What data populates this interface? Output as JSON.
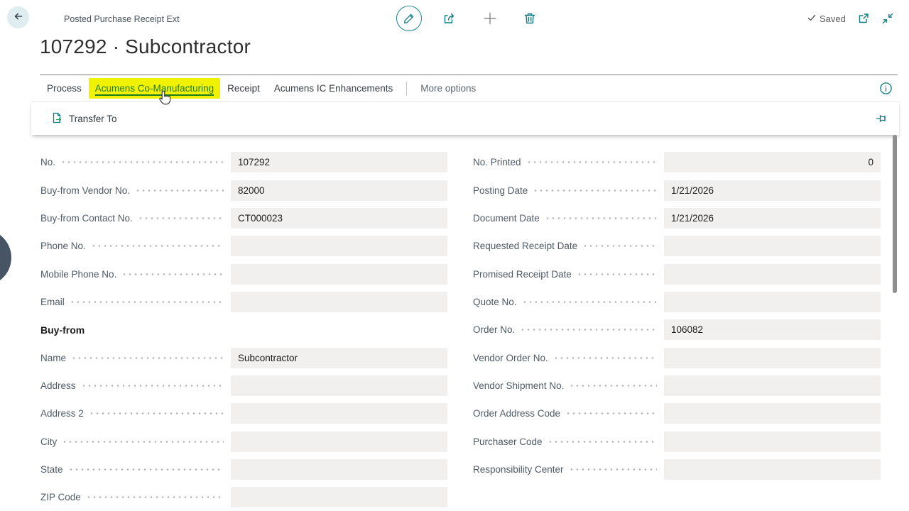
{
  "header": {
    "caption": "Posted Purchase Receipt Ext",
    "title": "107292 · Subcontractor",
    "saved": "Saved"
  },
  "tabs": {
    "items": [
      {
        "label": "Process",
        "highlighted": false
      },
      {
        "label": "Acumens Co-Manufacturing",
        "highlighted": true
      },
      {
        "label": "Receipt",
        "highlighted": false
      },
      {
        "label": "Acumens IC Enhancements",
        "highlighted": false
      }
    ],
    "more_options": "More options"
  },
  "action_bar": {
    "transfer_to": "Transfer To"
  },
  "form": {
    "left": [
      {
        "type": "field",
        "label": "No.",
        "value": "107292"
      },
      {
        "type": "field",
        "label": "Buy-from Vendor No.",
        "value": "82000"
      },
      {
        "type": "field",
        "label": "Buy-from Contact No.",
        "value": "CT000023"
      },
      {
        "type": "field",
        "label": "Phone No.",
        "value": ""
      },
      {
        "type": "field",
        "label": "Mobile Phone No.",
        "value": ""
      },
      {
        "type": "field",
        "label": "Email",
        "value": ""
      },
      {
        "type": "section",
        "label": "Buy-from"
      },
      {
        "type": "field",
        "label": "Name",
        "value": "Subcontractor"
      },
      {
        "type": "field",
        "label": "Address",
        "value": ""
      },
      {
        "type": "field",
        "label": "Address 2",
        "value": ""
      },
      {
        "type": "field",
        "label": "City",
        "value": ""
      },
      {
        "type": "field",
        "label": "State",
        "value": ""
      },
      {
        "type": "field",
        "label": "ZIP Code",
        "value": ""
      }
    ],
    "right": [
      {
        "type": "field",
        "label": "No. Printed",
        "value": "0",
        "align": "right"
      },
      {
        "type": "field",
        "label": "Posting Date",
        "value": "1/21/2026"
      },
      {
        "type": "field",
        "label": "Document Date",
        "value": "1/21/2026"
      },
      {
        "type": "field",
        "label": "Requested Receipt Date",
        "value": ""
      },
      {
        "type": "field",
        "label": "Promised Receipt Date",
        "value": ""
      },
      {
        "type": "field",
        "label": "Quote No.",
        "value": ""
      },
      {
        "type": "field",
        "label": "Order No.",
        "value": "106082"
      },
      {
        "type": "field",
        "label": "Vendor Order No.",
        "value": ""
      },
      {
        "type": "field",
        "label": "Vendor Shipment No.",
        "value": ""
      },
      {
        "type": "field",
        "label": "Order Address Code",
        "value": ""
      },
      {
        "type": "field",
        "label": "Purchaser Code",
        "value": ""
      },
      {
        "type": "field",
        "label": "Responsibility Center",
        "value": ""
      }
    ]
  },
  "icons": {
    "back": "back-arrow-icon",
    "edit": "edit-pencil-icon",
    "share": "share-icon",
    "add": "add-icon",
    "delete": "delete-trash-icon",
    "check": "check-icon",
    "popout": "open-in-new-window-icon",
    "collapse": "collapse-icon",
    "info": "info-icon",
    "pin": "pin-icon",
    "transfer": "transfer-document-icon",
    "cursor": "hand-cursor-icon"
  },
  "colors": {
    "accent_teal": "#0e7c85",
    "highlight_yellow": "#f1f203",
    "highlight_green": "#1e7b24",
    "field_bg": "#f1f0ef",
    "edge_handle": "#475463"
  }
}
